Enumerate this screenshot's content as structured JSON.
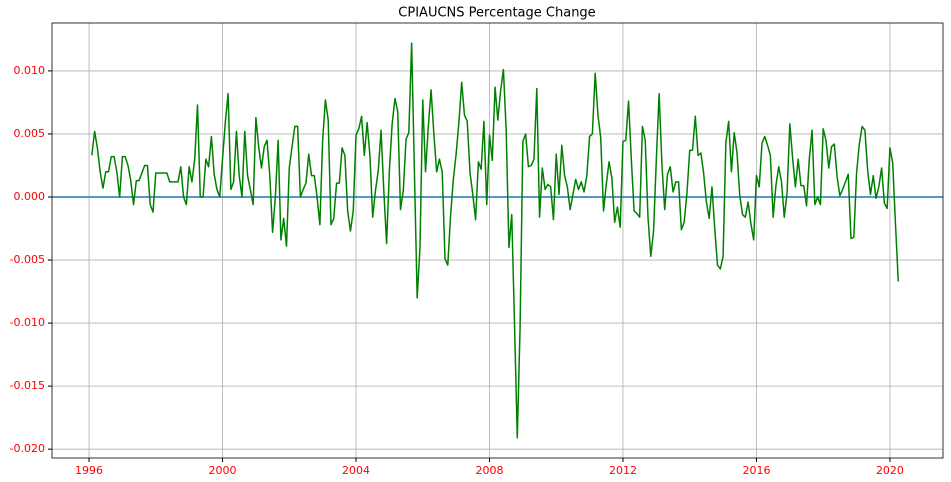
{
  "chart_data": {
    "type": "line",
    "title": "CPIAUCNS Percentage Change",
    "x": [
      1996.083,
      1996.167,
      1996.25,
      1996.333,
      1996.417,
      1996.5,
      1996.583,
      1996.667,
      1996.75,
      1996.833,
      1996.917,
      1997,
      1997.083,
      1997.167,
      1997.25,
      1997.333,
      1997.417,
      1997.5,
      1997.583,
      1997.667,
      1997.75,
      1997.833,
      1997.917,
      1998,
      1998.083,
      1998.167,
      1998.25,
      1998.333,
      1998.417,
      1998.5,
      1998.583,
      1998.667,
      1998.75,
      1998.833,
      1998.917,
      1999,
      1999.083,
      1999.167,
      1999.25,
      1999.333,
      1999.417,
      1999.5,
      1999.583,
      1999.667,
      1999.75,
      1999.833,
      1999.917,
      2000,
      2000.083,
      2000.167,
      2000.25,
      2000.333,
      2000.417,
      2000.5,
      2000.583,
      2000.667,
      2000.75,
      2000.833,
      2000.917,
      2001,
      2001.083,
      2001.167,
      2001.25,
      2001.333,
      2001.417,
      2001.5,
      2001.583,
      2001.667,
      2001.75,
      2001.833,
      2001.917,
      2002,
      2002.083,
      2002.167,
      2002.25,
      2002.333,
      2002.417,
      2002.5,
      2002.583,
      2002.667,
      2002.75,
      2002.833,
      2002.917,
      2003,
      2003.083,
      2003.167,
      2003.25,
      2003.333,
      2003.417,
      2003.5,
      2003.583,
      2003.667,
      2003.75,
      2003.833,
      2003.917,
      2004,
      2004.083,
      2004.167,
      2004.25,
      2004.333,
      2004.417,
      2004.5,
      2004.583,
      2004.667,
      2004.75,
      2004.833,
      2004.917,
      2005,
      2005.083,
      2005.167,
      2005.25,
      2005.333,
      2005.417,
      2005.5,
      2005.583,
      2005.667,
      2005.75,
      2005.833,
      2005.917,
      2006,
      2006.083,
      2006.167,
      2006.25,
      2006.333,
      2006.417,
      2006.5,
      2006.583,
      2006.667,
      2006.75,
      2006.833,
      2006.917,
      2007,
      2007.083,
      2007.167,
      2007.25,
      2007.333,
      2007.417,
      2007.5,
      2007.583,
      2007.667,
      2007.75,
      2007.833,
      2007.917,
      2008,
      2008.083,
      2008.167,
      2008.25,
      2008.333,
      2008.417,
      2008.5,
      2008.583,
      2008.667,
      2008.75,
      2008.833,
      2008.917,
      2009,
      2009.083,
      2009.167,
      2009.25,
      2009.333,
      2009.417,
      2009.5,
      2009.583,
      2009.667,
      2009.75,
      2009.833,
      2009.917,
      2010,
      2010.083,
      2010.167,
      2010.25,
      2010.333,
      2010.417,
      2010.5,
      2010.583,
      2010.667,
      2010.75,
      2010.833,
      2010.917,
      2011,
      2011.083,
      2011.167,
      2011.25,
      2011.333,
      2011.417,
      2011.5,
      2011.583,
      2011.667,
      2011.75,
      2011.833,
      2011.917,
      2012,
      2012.083,
      2012.167,
      2012.25,
      2012.333,
      2012.417,
      2012.5,
      2012.583,
      2012.667,
      2012.75,
      2012.833,
      2012.917,
      2013,
      2013.083,
      2013.167,
      2013.25,
      2013.333,
      2013.417,
      2013.5,
      2013.583,
      2013.667,
      2013.75,
      2013.833,
      2013.917,
      2014,
      2014.083,
      2014.167,
      2014.25,
      2014.333,
      2014.417,
      2014.5,
      2014.583,
      2014.667,
      2014.75,
      2014.833,
      2014.917,
      2015,
      2015.083,
      2015.167,
      2015.25,
      2015.333,
      2015.417,
      2015.5,
      2015.583,
      2015.667,
      2015.75,
      2015.833,
      2015.917,
      2016,
      2016.083,
      2016.167,
      2016.25,
      2016.333,
      2016.417,
      2016.5,
      2016.583,
      2016.667,
      2016.75,
      2016.833,
      2016.917,
      2017,
      2017.083,
      2017.167,
      2017.25,
      2017.333,
      2017.417,
      2017.5,
      2017.583,
      2017.667,
      2017.75,
      2017.833,
      2017.917,
      2018,
      2018.083,
      2018.167,
      2018.25,
      2018.333,
      2018.417,
      2018.5,
      2018.583,
      2018.667,
      2018.75,
      2018.833,
      2018.917,
      2019,
      2019.083,
      2019.167,
      2019.25,
      2019.333,
      2019.417,
      2019.5,
      2019.583,
      2019.667,
      2019.75,
      2019.833,
      2019.917,
      2020,
      2020.083,
      2020.167,
      2020.25
    ],
    "series": [
      {
        "color": "#008000",
        "values": [
          0.0033,
          0.0052,
          0.0039,
          0.002,
          0.0007,
          0.002,
          0.002,
          0.0032,
          0.0032,
          0.002,
          0,
          0.0032,
          0.0032,
          0.0025,
          0.0013,
          -0.0006,
          0.0013,
          0.0013,
          0.0019,
          0.0025,
          0.0025,
          -0.0006,
          -0.0012,
          0.0019,
          0.0019,
          0.0019,
          0.0019,
          0.0019,
          0.0012,
          0.0012,
          0.0012,
          0.0012,
          0.0024,
          0,
          -0.0006,
          0.0024,
          0.0012,
          0.003,
          0.0073,
          0,
          0,
          0.003,
          0.0024,
          0.0048,
          0.0018,
          0.0006,
          0,
          0.003,
          0.0059,
          0.0082,
          0.0006,
          0.0012,
          0.0052,
          0.0017,
          0,
          0.0052,
          0.0017,
          0.0006,
          -0.0006,
          0.0063,
          0.004,
          0.0023,
          0.004,
          0.0045,
          0.0017,
          -0.0028,
          0,
          0.0045,
          -0.0034,
          -0.0017,
          -0.0039,
          0.0023,
          0.004,
          0.0056,
          0.0056,
          0,
          0.0006,
          0.0011,
          0.0034,
          0.0017,
          0.0017,
          0,
          -0.0022,
          0.0045,
          0.0077,
          0.0061,
          -0.0022,
          -0.0017,
          0.0011,
          0.0011,
          0.0039,
          0.0033,
          -0.0011,
          -0.0027,
          -0.0011,
          0.0049,
          0.0054,
          0.0064,
          0.0033,
          0.0059,
          0.0033,
          -0.0016,
          0.0005,
          0.0021,
          0.0053,
          0.0005,
          -0.0037,
          0.0021,
          0.0058,
          0.0078,
          0.0068,
          -0.001,
          0.0005,
          0.0046,
          0.0051,
          0.0122,
          0.002,
          -0.008,
          -0.004,
          0.0077,
          0.002,
          0.0056,
          0.0085,
          0.005,
          0.002,
          0.003,
          0.002,
          -0.0049,
          -0.0054,
          -0.0015,
          0.0014,
          0.0034,
          0.0059,
          0.0091,
          0.0065,
          0.006,
          0.0019,
          0.0002,
          -0.0018,
          0.0028,
          0.0022,
          0.006,
          -0.0006,
          0.0049,
          0.0029,
          0.0087,
          0.0061,
          0.0084,
          0.0101,
          0.0053,
          -0.004,
          -0.0014,
          -0.0101,
          -0.0191,
          -0.0103,
          0.0044,
          0.005,
          0.0024,
          0.0025,
          0.003,
          0.0086,
          -0.0016,
          0.0023,
          0.0006,
          0.001,
          0.0008,
          -0.0018,
          0.0034,
          0.0002,
          0.0041,
          0.0017,
          0.0008,
          -0.001,
          0.0002,
          0.0014,
          0.0006,
          0.0012,
          0.0004,
          0.0017,
          0.0048,
          0.005,
          0.0098,
          0.0065,
          0.0047,
          -0.0011,
          0.001,
          0.0028,
          0.0015,
          -0.002,
          -0.0008,
          -0.0024,
          0.0044,
          0.0045,
          0.0076,
          0.003,
          -0.0011,
          -0.0013,
          -0.0016,
          0.0056,
          0.0045,
          -0.0016,
          -0.0047,
          -0.0027,
          0.003,
          0.0082,
          0.0026,
          -0.001,
          0.0018,
          0.0024,
          0.0004,
          0.0012,
          0.0012,
          -0.0026,
          -0.002,
          0.0003,
          0.0037,
          0.0037,
          0.0064,
          0.0033,
          0.0035,
          0.0019,
          -0.0004,
          -0.0017,
          0.0008,
          -0.0025,
          -0.0054,
          -0.0057,
          -0.0047,
          0.0043,
          0.006,
          0.002,
          0.0051,
          0.0035,
          0.0001,
          -0.0014,
          -0.0016,
          -0.0004,
          -0.0021,
          -0.0034,
          0.0017,
          0.0008,
          0.0043,
          0.0048,
          0.0041,
          0.0033,
          -0.0016,
          0.0009,
          0.0024,
          0.0012,
          -0.0016,
          0.0003,
          0.0058,
          0.0031,
          0.0008,
          0.003,
          0.0009,
          0.0009,
          -0.0007,
          0.003,
          0.0053,
          -0.0006,
          0,
          -0.0006,
          0.0054,
          0.0045,
          0.0023,
          0.004,
          0.0042,
          0.0016,
          0.0001,
          0.0006,
          0.0012,
          0.0018,
          -0.0033,
          -0.0032,
          0.0019,
          0.0042,
          0.0056,
          0.0053,
          0.0021,
          0.0002,
          0.0017,
          -0.0001,
          0.0008,
          0.0023,
          -0.0005,
          -0.0009,
          0.0039,
          0.0027,
          -0.0022,
          -0.0067
        ]
      }
    ],
    "hline": {
      "value": 0,
      "color": "#1f77b4"
    },
    "xlim": [
      1994.89,
      2021.59
    ],
    "xticks": [
      1996,
      2000,
      2004,
      2008,
      2012,
      2016,
      2020
    ],
    "ylim": [
      -0.0207,
      0.0138
    ],
    "yticks": [
      {
        "value": -0.02,
        "label": "-0.020"
      },
      {
        "value": -0.015,
        "label": "-0.015"
      },
      {
        "value": -0.01,
        "label": "-0.010"
      },
      {
        "value": -0.005,
        "label": "-0.005"
      },
      {
        "value": 0,
        "label": "0.000"
      },
      {
        "value": 0.005,
        "label": "0.005"
      },
      {
        "value": 0.01,
        "label": "0.010"
      }
    ],
    "grid": true,
    "tick_label_color": "#ff0000"
  }
}
